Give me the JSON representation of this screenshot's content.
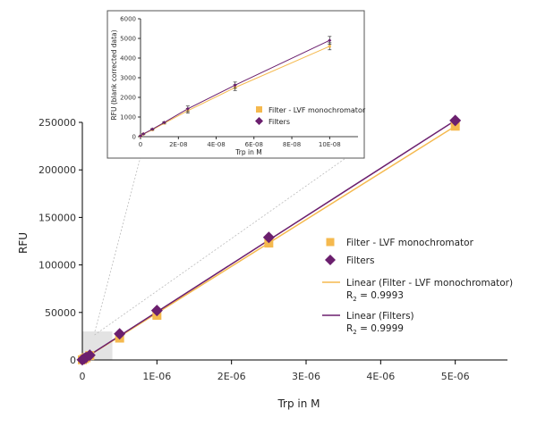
{
  "chart_data": [
    {
      "type": "scatter",
      "xlabel": "Trp in M",
      "ylabel": "RFU",
      "xlim": [
        0,
        5.7e-06
      ],
      "ylim": [
        0,
        250000
      ],
      "x_tick_values": [
        0,
        1e-06,
        2e-06,
        3e-06,
        4e-06,
        5e-06
      ],
      "x_tick_labels": [
        "0",
        "1E-06",
        "2E-06",
        "3E-06",
        "4E-06",
        "5E-06"
      ],
      "y_tick_values": [
        0,
        50000,
        100000,
        150000,
        200000,
        250000
      ],
      "y_tick_labels": [
        "0",
        "50000",
        "100000",
        "150000",
        "200000",
        "250000"
      ],
      "series": [
        {
          "name": "Filter - LVF monochromator",
          "marker": "square",
          "color": "#F5B94E",
          "x": [
            0,
            2.5e-08,
            5e-08,
            1e-07,
            5e-07,
            1e-06,
            2.5e-06,
            5e-06
          ],
          "y": [
            200,
            1300,
            2400,
            4600,
            23000,
            47000,
            123000,
            246000
          ]
        },
        {
          "name": "Filters",
          "marker": "diamond",
          "color": "#6B1F6E",
          "x": [
            0,
            2.5e-08,
            5e-08,
            1e-07,
            5e-07,
            1e-06,
            2.5e-06,
            5e-06
          ],
          "y": [
            250,
            1400,
            2600,
            5000,
            27500,
            52000,
            129000,
            252000
          ]
        }
      ],
      "fits": [
        {
          "name": "Linear (Filter - LVF monochromator)",
          "r2_prefix": "R",
          "r2_sub": "2",
          "r2_value": " = 0.9993",
          "color": "#F5B94E",
          "x": [
            0,
            5e-06
          ],
          "y": [
            200,
            246000
          ]
        },
        {
          "name": "Linear (Filters)",
          "r2_prefix": "R",
          "r2_sub": "2",
          "r2_value": " = 0.9999",
          "color": "#6B1F6E",
          "x": [
            0,
            5e-06
          ],
          "y": [
            250,
            252000
          ]
        }
      ]
    },
    {
      "type": "scatter",
      "xlabel": "Trp in M",
      "ylabel": "RFU (blank corrected data)",
      "xlim": [
        0,
        1.15e-07
      ],
      "ylim": [
        0,
        6000
      ],
      "x_tick_values": [
        0,
        2e-08,
        4e-08,
        6e-08,
        8e-08,
        1e-07
      ],
      "x_tick_labels": [
        "0",
        "2E-08",
        "4E-08",
        "6E-08",
        "8E-08",
        "10E-08"
      ],
      "y_tick_values": [
        0,
        1000,
        2000,
        3000,
        4000,
        5000,
        6000
      ],
      "y_tick_labels": [
        "0",
        "1000",
        "2000",
        "3000",
        "4000",
        "5000",
        "6000"
      ],
      "series": [
        {
          "name": "Filter - LVF monochromator",
          "marker": "square",
          "color": "#F5B94E",
          "x": [
            0,
            1.5e-09,
            6.25e-09,
            1.25e-08,
            2.5e-08,
            5e-08,
            1e-07
          ],
          "y": [
            30,
            130,
            350,
            680,
            1320,
            2500,
            4600
          ],
          "err": [
            10,
            15,
            30,
            40,
            120,
            150,
            180
          ]
        },
        {
          "name": "Filters",
          "marker": "diamond",
          "color": "#6B1F6E",
          "x": [
            0,
            1.5e-09,
            6.25e-09,
            1.25e-08,
            2.5e-08,
            5e-08,
            1e-07
          ],
          "y": [
            40,
            140,
            380,
            720,
            1420,
            2620,
            4900
          ],
          "err": [
            10,
            15,
            30,
            40,
            140,
            160,
            200
          ]
        }
      ]
    }
  ]
}
